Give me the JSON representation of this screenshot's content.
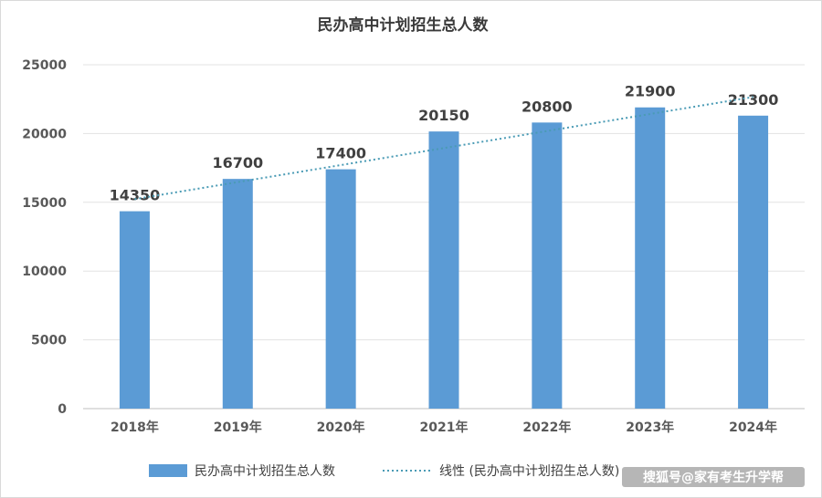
{
  "chart_data": {
    "type": "bar",
    "title": "民办高中计划招生总人数",
    "categories": [
      "2018年",
      "2019年",
      "2020年",
      "2021年",
      "2022年",
      "2023年",
      "2024年"
    ],
    "series": [
      {
        "name": "民办高中计划招生总人数",
        "values": [
          14350,
          16700,
          17400,
          20150,
          20800,
          21900,
          21300
        ],
        "color": "#5b9bd5"
      }
    ],
    "trendline": {
      "name": "线性 (民办高中计划招生总人数)",
      "type": "linear",
      "color": "#4a9bb5"
    },
    "ylim": [
      0,
      25000
    ],
    "yticks": [
      0,
      5000,
      10000,
      15000,
      20000,
      25000
    ],
    "grid": true,
    "legend": "bottom",
    "xlabel": "",
    "ylabel": ""
  },
  "watermark": "搜狐号@家有考生升学帮"
}
